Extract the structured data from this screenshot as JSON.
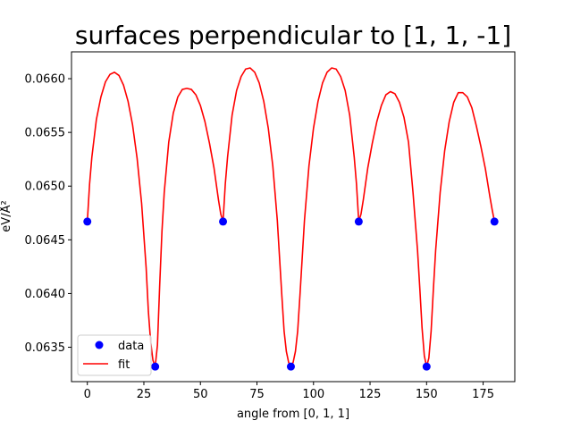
{
  "chart_data": {
    "type": "line",
    "title": "surfaces perpendicular to [1, 1, -1]",
    "xlabel": "angle from [0, 1, 1]",
    "ylabel": "eV/Å²",
    "xlim": [
      -7,
      189
    ],
    "ylim": [
      0.06318,
      0.06625
    ],
    "x_ticks": [
      0,
      25,
      50,
      75,
      100,
      125,
      150,
      175
    ],
    "x_tick_labels": [
      "0",
      "25",
      "50",
      "75",
      "100",
      "125",
      "150",
      "175"
    ],
    "y_ticks": [
      0.0635,
      0.064,
      0.0645,
      0.065,
      0.0655,
      0.066
    ],
    "y_tick_labels": [
      "0.0635",
      "0.0640",
      "0.0645",
      "0.0650",
      "0.0655",
      "0.0660"
    ],
    "grid": false,
    "legend_position": "lower left",
    "series": [
      {
        "name": "data",
        "style": "markers",
        "color": "#0000ff",
        "x": [
          0,
          30,
          60,
          90,
          120,
          150,
          180
        ],
        "y": [
          0.06467,
          0.06332,
          0.06467,
          0.06332,
          0.06467,
          0.06332,
          0.06467
        ]
      },
      {
        "name": "fit",
        "style": "line",
        "color": "#ff0000",
        "x": [
          0,
          1,
          2,
          4,
          6,
          8,
          10,
          12,
          14,
          16,
          18,
          20,
          22,
          24,
          26,
          27,
          28,
          29,
          30,
          31,
          32,
          33,
          34,
          36,
          38,
          40,
          42,
          44,
          46,
          48,
          50,
          52,
          54,
          56,
          58,
          59,
          60,
          61,
          62,
          64,
          66,
          68,
          70,
          72,
          74,
          76,
          78,
          80,
          82,
          84,
          86,
          87,
          88,
          89,
          90,
          91,
          92,
          93,
          94,
          96,
          98,
          100,
          102,
          104,
          106,
          108,
          110,
          112,
          114,
          116,
          118,
          119,
          120,
          121,
          122,
          124,
          126,
          128,
          130,
          132,
          134,
          136,
          138,
          140,
          142,
          144,
          146,
          147,
          148,
          149,
          150,
          151,
          152,
          153,
          154,
          156,
          158,
          160,
          162,
          164,
          166,
          168,
          170,
          172,
          174,
          176,
          178,
          179,
          180
        ],
        "y": [
          0.06467,
          0.06502,
          0.06527,
          0.06562,
          0.06583,
          0.06597,
          0.06604,
          0.06606,
          0.06603,
          0.06594,
          0.06579,
          0.06557,
          0.06526,
          0.06484,
          0.06424,
          0.06383,
          0.06355,
          0.06338,
          0.06332,
          0.06352,
          0.06408,
          0.06458,
          0.06494,
          0.06541,
          0.06568,
          0.06583,
          0.0659,
          0.06591,
          0.0659,
          0.06585,
          0.06575,
          0.0656,
          0.0654,
          0.06517,
          0.06487,
          0.06474,
          0.06467,
          0.06502,
          0.06527,
          0.06566,
          0.06589,
          0.06602,
          0.06609,
          0.0661,
          0.06606,
          0.06596,
          0.06579,
          0.06554,
          0.06519,
          0.06468,
          0.06398,
          0.06365,
          0.06346,
          0.06336,
          0.06332,
          0.06336,
          0.06346,
          0.06365,
          0.06398,
          0.06468,
          0.06519,
          0.06554,
          0.06579,
          0.06596,
          0.06606,
          0.0661,
          0.06609,
          0.06602,
          0.06589,
          0.06566,
          0.06527,
          0.06502,
          0.06467,
          0.06474,
          0.06487,
          0.06517,
          0.0654,
          0.0656,
          0.06575,
          0.06585,
          0.06588,
          0.06586,
          0.06578,
          0.06564,
          0.06541,
          0.06494,
          0.0644,
          0.06405,
          0.06368,
          0.06342,
          0.06332,
          0.0634,
          0.06365,
          0.06404,
          0.0644,
          0.06494,
          0.06533,
          0.0656,
          0.06578,
          0.06587,
          0.06587,
          0.06583,
          0.06573,
          0.06556,
          0.06537,
          0.06516,
          0.0649,
          0.06478,
          0.06467
        ]
      }
    ]
  }
}
